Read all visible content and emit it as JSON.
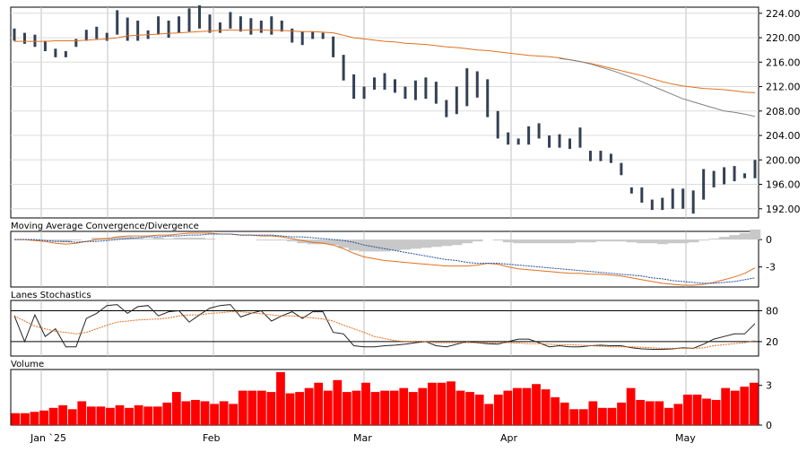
{
  "chart_data": [
    {
      "type": "ohlc",
      "title": "",
      "xlabel": "",
      "ylabel": "",
      "ylim": [
        190.5,
        225.0
      ],
      "y_ticks": [
        "224.00",
        "220.00",
        "216.00",
        "212.00",
        "208.00",
        "204.00",
        "200.00",
        "196.00",
        "192.00"
      ],
      "x_tick_labels": [
        "Jan `25",
        "Feb",
        "Mar",
        "Apr",
        "May"
      ],
      "grid": true,
      "series": [
        {
          "kind": "ohlc",
          "color": "#334155",
          "highs": [
            221.5,
            220.8,
            220.5,
            219.5,
            218.2,
            217.8,
            219.8,
            221.3,
            221.8,
            220.8,
            224.5,
            223.3,
            222.8,
            221.2,
            223.5,
            222.8,
            223.5,
            224.8,
            225.3,
            223.8,
            222.5,
            224.2,
            223.5,
            223.2,
            222.8,
            223.5,
            222.8,
            221.5,
            221.0,
            221.0,
            220.8,
            220.2,
            217.2,
            214.0,
            212.0,
            213.5,
            214.2,
            213.2,
            212.0,
            213.0,
            213.5,
            212.8,
            209.8,
            212.0,
            215.0,
            214.5,
            213.2,
            208.0,
            204.5,
            203.5,
            205.5,
            206.0,
            204.0,
            204.2,
            203.5,
            205.3,
            201.5,
            201.5,
            201.0,
            199.5,
            195.5,
            195.5,
            193.5,
            193.8,
            195.3,
            195.3,
            195.0,
            198.5,
            198.2,
            198.8,
            199.0,
            197.8,
            200.0
          ],
          "lows": [
            219.5,
            219.0,
            218.5,
            217.8,
            216.8,
            216.8,
            218.5,
            219.5,
            219.8,
            219.5,
            220.5,
            219.5,
            219.5,
            219.8,
            220.5,
            220.0,
            220.8,
            221.0,
            221.5,
            220.8,
            220.8,
            221.5,
            221.0,
            220.5,
            220.8,
            220.5,
            221.0,
            219.2,
            218.8,
            219.8,
            219.8,
            216.8,
            213.0,
            210.0,
            210.0,
            211.5,
            211.5,
            211.0,
            210.0,
            209.8,
            210.0,
            209.2,
            207.0,
            207.5,
            208.8,
            210.2,
            207.0,
            203.5,
            202.5,
            202.5,
            202.5,
            203.5,
            202.0,
            202.0,
            201.8,
            202.0,
            199.8,
            199.8,
            199.5,
            197.5,
            194.5,
            193.0,
            191.8,
            191.8,
            192.0,
            192.0,
            191.2,
            193.5,
            195.5,
            196.0,
            196.5,
            197.0,
            197.0
          ]
        },
        {
          "kind": "line",
          "name": "",
          "color": "#e07020",
          "values": [
            219.4,
            219.4,
            219.4,
            219.4,
            219.5,
            219.5,
            219.5,
            219.6,
            219.7,
            219.8,
            220.0,
            220.3,
            220.4,
            220.5,
            220.6,
            220.7,
            220.8,
            220.9,
            221.0,
            221.1,
            221.2,
            221.3,
            221.2,
            221.3,
            221.3,
            221.2,
            221.2,
            221.1,
            221.0,
            221.0,
            220.9,
            220.8,
            220.4,
            220.0,
            219.8,
            219.6,
            219.4,
            219.3,
            219.1,
            219.0,
            218.9,
            218.7,
            218.5,
            218.4,
            218.2,
            218.0,
            217.9,
            217.7,
            217.5,
            217.3,
            217.1,
            217.0,
            216.9,
            216.7,
            216.4,
            216.1,
            215.8,
            215.4,
            215.0,
            214.6,
            214.2,
            213.8,
            213.3,
            212.8,
            212.4,
            212.1,
            211.9,
            211.7,
            211.6,
            211.5,
            211.3,
            211.1,
            211.0
          ]
        },
        {
          "kind": "line",
          "name": "",
          "color": "#808080",
          "values": [
            null,
            null,
            null,
            null,
            null,
            null,
            null,
            null,
            null,
            null,
            null,
            null,
            null,
            null,
            null,
            null,
            null,
            null,
            null,
            null,
            null,
            null,
            null,
            null,
            null,
            null,
            null,
            null,
            null,
            null,
            null,
            null,
            null,
            null,
            null,
            null,
            null,
            null,
            null,
            null,
            null,
            null,
            null,
            null,
            null,
            null,
            null,
            null,
            null,
            null,
            null,
            null,
            null,
            216.6,
            216.4,
            216.1,
            215.7,
            215.2,
            214.7,
            214.1,
            213.5,
            212.8,
            212.1,
            211.4,
            210.7,
            210.0,
            209.5,
            209.0,
            208.5,
            208.0,
            207.8,
            207.5,
            207.1
          ]
        }
      ]
    },
    {
      "type": "line",
      "title": "Moving Average Convergence/Divergence",
      "ylim": [
        -5.2,
        0.9
      ],
      "y_ticks": [
        "0",
        "-3"
      ],
      "series": [
        {
          "kind": "line",
          "name": "",
          "color": "#e07020",
          "values": [
            0.0,
            0.0,
            -0.1,
            -0.2,
            -0.4,
            -0.5,
            -0.4,
            -0.2,
            0.0,
            0.1,
            0.3,
            0.4,
            0.4,
            0.4,
            0.5,
            0.5,
            0.6,
            0.7,
            0.7,
            0.7,
            0.6,
            0.6,
            0.5,
            0.5,
            0.4,
            0.4,
            0.3,
            0.1,
            -0.1,
            -0.3,
            -0.4,
            -0.6,
            -1.0,
            -1.5,
            -1.9,
            -2.1,
            -2.3,
            -2.4,
            -2.5,
            -2.6,
            -2.7,
            -2.8,
            -2.9,
            -2.9,
            -2.9,
            -2.8,
            -2.6,
            -2.7,
            -3.0,
            -3.2,
            -3.3,
            -3.4,
            -3.5,
            -3.6,
            -3.7,
            -3.7,
            -3.8,
            -3.8,
            -3.9,
            -4.0,
            -4.2,
            -4.4,
            -4.6,
            -4.8,
            -4.9,
            -5.0,
            -5.0,
            -4.9,
            -4.7,
            -4.4,
            -4.1,
            -3.7,
            -3.1
          ]
        },
        {
          "kind": "line",
          "name": "",
          "color": "#2050a0",
          "dashed": true,
          "values": [
            0.0,
            0.0,
            0.0,
            -0.1,
            -0.2,
            -0.2,
            -0.3,
            -0.2,
            -0.2,
            -0.1,
            0.0,
            0.1,
            0.2,
            0.3,
            0.3,
            0.4,
            0.4,
            0.5,
            0.5,
            0.6,
            0.6,
            0.6,
            0.5,
            0.5,
            0.5,
            0.5,
            0.4,
            0.3,
            0.3,
            0.2,
            0.1,
            0.0,
            -0.1,
            -0.3,
            -0.6,
            -0.8,
            -1.0,
            -1.2,
            -1.4,
            -1.6,
            -1.8,
            -2.0,
            -2.2,
            -2.3,
            -2.5,
            -2.6,
            -2.6,
            -2.6,
            -2.7,
            -2.8,
            -2.9,
            -3.0,
            -3.1,
            -3.2,
            -3.3,
            -3.4,
            -3.5,
            -3.6,
            -3.7,
            -3.8,
            -3.9,
            -4.0,
            -4.2,
            -4.3,
            -4.5,
            -4.6,
            -4.7,
            -4.8,
            -4.8,
            -4.7,
            -4.6,
            -4.4,
            -4.2
          ]
        },
        {
          "kind": "histogram",
          "name": "",
          "color": "#c8c8c8",
          "values": [
            0.0,
            0.0,
            -0.1,
            -0.1,
            -0.2,
            -0.3,
            -0.1,
            0.0,
            0.2,
            0.2,
            0.3,
            0.3,
            0.2,
            0.1,
            0.2,
            0.1,
            0.2,
            0.2,
            0.2,
            0.1,
            0.0,
            0.0,
            0.0,
            0.0,
            -0.1,
            -0.1,
            -0.1,
            -0.2,
            -0.4,
            -0.5,
            -0.5,
            -0.6,
            -0.9,
            -1.2,
            -1.3,
            -1.3,
            -1.3,
            -1.2,
            -1.1,
            -1.0,
            -0.9,
            -0.8,
            -0.7,
            -0.6,
            -0.4,
            -0.2,
            0.0,
            -0.1,
            -0.3,
            -0.4,
            -0.4,
            -0.4,
            -0.4,
            -0.4,
            -0.4,
            -0.3,
            -0.3,
            -0.2,
            -0.2,
            -0.2,
            -0.3,
            -0.4,
            -0.4,
            -0.5,
            -0.4,
            -0.4,
            -0.3,
            -0.1,
            0.1,
            0.3,
            0.5,
            0.7,
            1.1
          ]
        }
      ]
    },
    {
      "type": "line",
      "title": "Lanes Stochastics",
      "ylim": [
        -8,
        100
      ],
      "y_ticks": [
        "80",
        "20"
      ],
      "reference_lines": [
        80,
        20
      ],
      "series": [
        {
          "kind": "line",
          "name": "",
          "color": "#222222",
          "values": [
            70,
            20,
            72,
            30,
            45,
            10,
            10,
            65,
            75,
            90,
            92,
            75,
            88,
            90,
            70,
            78,
            80,
            58,
            72,
            85,
            90,
            92,
            68,
            75,
            80,
            60,
            70,
            78,
            65,
            78,
            78,
            38,
            35,
            12,
            10,
            10,
            12,
            13,
            15,
            18,
            20,
            12,
            10,
            15,
            20,
            18,
            16,
            15,
            20,
            25,
            25,
            18,
            10,
            12,
            10,
            10,
            12,
            13,
            12,
            12,
            8,
            6,
            5,
            5,
            6,
            8,
            7,
            15,
            25,
            30,
            35,
            35,
            55
          ]
        },
        {
          "kind": "line",
          "name": "",
          "color": "#e07020",
          "dashed": true,
          "values": [
            70,
            60,
            50,
            45,
            40,
            38,
            35,
            38,
            45,
            52,
            58,
            60,
            62,
            63,
            64,
            66,
            70,
            72,
            72,
            75,
            76,
            78,
            78,
            76,
            74,
            72,
            70,
            70,
            68,
            66,
            64,
            60,
            52,
            45,
            38,
            30,
            26,
            22,
            20,
            20,
            20,
            18,
            18,
            18,
            18,
            18,
            18,
            18,
            18,
            17,
            16,
            16,
            15,
            14,
            14,
            13,
            12,
            11,
            10,
            10,
            10,
            9,
            8,
            7,
            7,
            7,
            7,
            8,
            12,
            14,
            16,
            18,
            22
          ]
        }
      ]
    },
    {
      "type": "bar",
      "title": "Volume",
      "ylim": [
        0,
        4.2
      ],
      "y_ticks": [
        "3",
        "0"
      ],
      "series": [
        {
          "kind": "bar",
          "name": "",
          "color": "#ff0000",
          "values": [
            0.9,
            0.9,
            1.0,
            1.1,
            1.3,
            1.5,
            1.2,
            1.8,
            1.4,
            1.4,
            1.3,
            1.5,
            1.3,
            1.5,
            1.4,
            1.4,
            1.7,
            2.5,
            1.8,
            1.9,
            1.8,
            1.6,
            1.8,
            1.6,
            2.6,
            2.6,
            2.6,
            2.5,
            4.0,
            2.4,
            2.5,
            2.8,
            3.2,
            2.6,
            3.4,
            2.5,
            2.6,
            3.2,
            2.5,
            2.6,
            2.6,
            2.8,
            2.5,
            2.8,
            3.2,
            3.2,
            3.3,
            2.6,
            2.5,
            2.3,
            1.6,
            2.3,
            2.6,
            2.8,
            2.8,
            3.1,
            2.7,
            2.1,
            1.7,
            1.2,
            1.2,
            1.8,
            1.3,
            1.3,
            1.7,
            2.8,
            1.9,
            1.8,
            1.8,
            1.3,
            1.6,
            2.3,
            2.3,
            2.0,
            1.9,
            2.8,
            2.6,
            2.9,
            3.2
          ]
        }
      ]
    }
  ]
}
